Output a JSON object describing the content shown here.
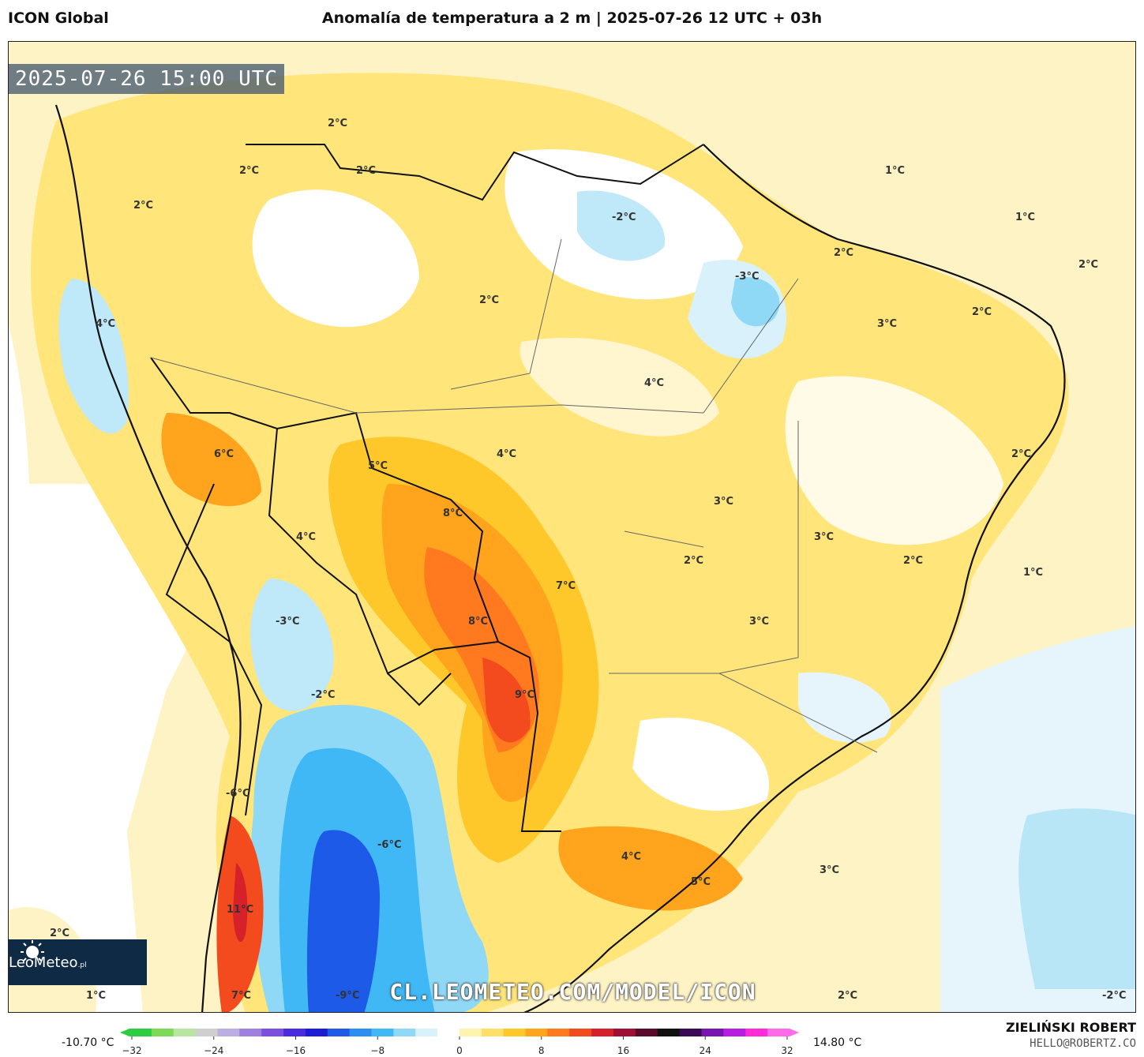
{
  "header": {
    "model": "ICON Global",
    "title": "Anomalía de temperatura a 2 m | 2025-07-26 12 UTC + 03h"
  },
  "map": {
    "timestamp": "2025-07-26 15:00 UTC",
    "contour_labels": [
      {
        "text": "2°C"
      },
      {
        "text": "2°C"
      },
      {
        "text": "2°C"
      },
      {
        "text": "2°C"
      },
      {
        "text": "1°C"
      },
      {
        "text": "1°C"
      },
      {
        "text": "-2°C"
      },
      {
        "text": "2°C"
      },
      {
        "text": "-3°C"
      },
      {
        "text": "2°C"
      },
      {
        "text": "2°C"
      },
      {
        "text": "4°C"
      },
      {
        "text": "3°C"
      },
      {
        "text": "2°C"
      },
      {
        "text": "4°C"
      },
      {
        "text": "6°C"
      },
      {
        "text": "5°C"
      },
      {
        "text": "4°C"
      },
      {
        "text": "2°C"
      },
      {
        "text": "8°C"
      },
      {
        "text": "4°C"
      },
      {
        "text": "3°C"
      },
      {
        "text": "3°C"
      },
      {
        "text": "2°C"
      },
      {
        "text": "2°C"
      },
      {
        "text": "1°C"
      },
      {
        "text": "7°C"
      },
      {
        "text": "-3°C"
      },
      {
        "text": "8°C"
      },
      {
        "text": "3°C"
      },
      {
        "text": "9°C"
      },
      {
        "text": "-2°C"
      },
      {
        "text": "-6°C"
      },
      {
        "text": "-6°C"
      },
      {
        "text": "4°C"
      },
      {
        "text": "3°C"
      },
      {
        "text": "5°C"
      },
      {
        "text": "11°C"
      },
      {
        "text": "2°C"
      },
      {
        "text": "1°C"
      },
      {
        "text": "7°C"
      },
      {
        "text": "-9°C"
      },
      {
        "text": "2°C"
      },
      {
        "text": "-2°C"
      }
    ],
    "website": "CL.LEOMETEO.COM/MODEL/ICON",
    "logo": {
      "icon": "sun-icon",
      "brand": "LeoMeteo",
      "suffix": ".pl"
    }
  },
  "colorbar": {
    "min_label": "-10.70 °C",
    "max_label": "14.80 °C",
    "ticks": [
      "−32",
      "−24",
      "−16",
      "−8",
      "0",
      "8",
      "16",
      "24",
      "32"
    ],
    "colors": [
      "#2ecc40",
      "#7ed957",
      "#b8e6a0",
      "#cfcfcf",
      "#bcaee0",
      "#9f7fe0",
      "#7b4fe0",
      "#4a2ce0",
      "#1d1dd6",
      "#1e5ae8",
      "#2a8ff0",
      "#3fb8f5",
      "#8fd9f7",
      "#d8f1fb",
      "#ffffff",
      "#fff3b0",
      "#ffe066",
      "#ffc82a",
      "#ffa41c",
      "#ff7a1f",
      "#f44b1e",
      "#d6202a",
      "#9e1035",
      "#5a0a2a",
      "#111111",
      "#3a0a55",
      "#7a14b0",
      "#b81ee0",
      "#ff2ad8",
      "#ff6ae8"
    ]
  },
  "credit": {
    "name": "ZIELIŃSKI ROBERT",
    "email": "HELLO@ROBERTZ.CO"
  }
}
